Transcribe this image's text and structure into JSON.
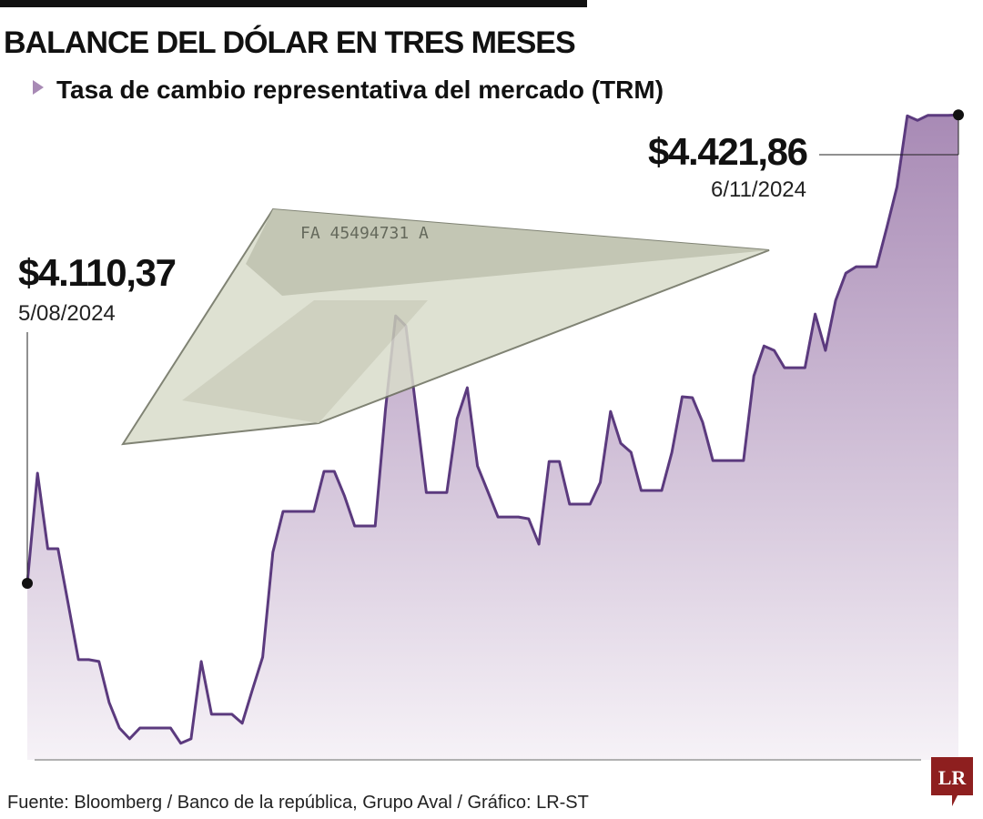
{
  "chart_data": {
    "type": "area",
    "title": "BALANCE DEL DÓLAR EN TRES MESES",
    "subtitle": "Tasa de cambio representativa del mercado (TRM)",
    "source": "Fuente: Bloomberg / Banco de la república, Grupo Aval / Gráfico: LR-ST",
    "logo": "LR",
    "color": "#5b3a7e",
    "ylim": [
      3993,
      4422
    ],
    "categories": [
      "5/08/2024",
      null,
      null,
      null,
      null,
      null,
      null,
      null,
      null,
      null,
      null,
      null,
      null,
      null,
      null,
      null,
      null,
      null,
      null,
      null,
      null,
      null,
      null,
      null,
      null,
      null,
      null,
      null,
      null,
      null,
      null,
      null,
      null,
      null,
      null,
      null,
      null,
      null,
      null,
      null,
      null,
      null,
      null,
      null,
      null,
      null,
      null,
      null,
      null,
      null,
      null,
      null,
      null,
      null,
      null,
      null,
      null,
      null,
      null,
      null,
      null,
      null,
      null,
      null,
      null,
      null,
      null,
      null,
      null,
      null,
      null,
      null,
      null,
      null,
      null,
      null,
      null,
      null,
      null,
      null,
      null,
      null,
      null,
      null,
      null,
      null,
      null,
      null,
      null,
      null,
      null,
      "6/11/2024"
    ],
    "values": [
      4110.37,
      4183.6,
      4133.4,
      4133.4,
      4096.5,
      4059.6,
      4059.6,
      4058.4,
      4031.2,
      4014.2,
      4007.0,
      4014.2,
      4014.2,
      4014.2,
      4014.2,
      4004.0,
      4007.0,
      4058.4,
      4023.3,
      4023.3,
      4023.3,
      4017.3,
      4039.6,
      4061.4,
      4131.0,
      4158.2,
      4158.2,
      4158.2,
      4158.2,
      4184.8,
      4184.8,
      4168.4,
      4148.5,
      4148.5,
      4148.5,
      4225.9,
      4288.2,
      4281.5,
      4225.9,
      4170.8,
      4170.8,
      4170.8,
      4219.8,
      4240.4,
      4188.4,
      4171.5,
      4154.5,
      4154.5,
      4154.5,
      4153.3,
      4136.4,
      4191.4,
      4191.4,
      4163.0,
      4163.0,
      4163.0,
      4177.5,
      4224.7,
      4203.5,
      4197.5,
      4172.1,
      4172.1,
      4172.1,
      4197.5,
      4234.4,
      4233.8,
      4217.4,
      4192.0,
      4192.0,
      4192.0,
      4192.0,
      4248.3,
      4268.2,
      4265.2,
      4253.7,
      4253.7,
      4253.7,
      4289.4,
      4265.2,
      4298.5,
      4316.6,
      4320.9,
      4320.9,
      4320.9,
      4346.9,
      4374.1,
      4421.2,
      4418.2,
      4421.5,
      4421.5,
      4421.5,
      4421.86
    ],
    "value_labels": [
      "$4.110,37",
      null,
      null,
      null,
      null,
      null,
      null,
      null,
      null,
      null,
      null,
      null,
      null,
      null,
      null,
      null,
      null,
      null,
      null,
      null,
      null,
      null,
      null,
      null,
      null,
      null,
      null,
      null,
      null,
      null,
      null,
      null,
      null,
      null,
      null,
      null,
      null,
      null,
      null,
      null,
      null,
      null,
      null,
      null,
      null,
      null,
      null,
      null,
      null,
      null,
      null,
      null,
      null,
      null,
      null,
      null,
      null,
      null,
      null,
      null,
      null,
      null,
      null,
      null,
      null,
      null,
      null,
      null,
      null,
      null,
      null,
      null,
      null,
      null,
      null,
      null,
      null,
      null,
      null,
      null,
      null,
      null,
      null,
      null,
      null,
      null,
      null,
      null,
      null,
      null,
      null,
      "$4.421,86"
    ]
  }
}
